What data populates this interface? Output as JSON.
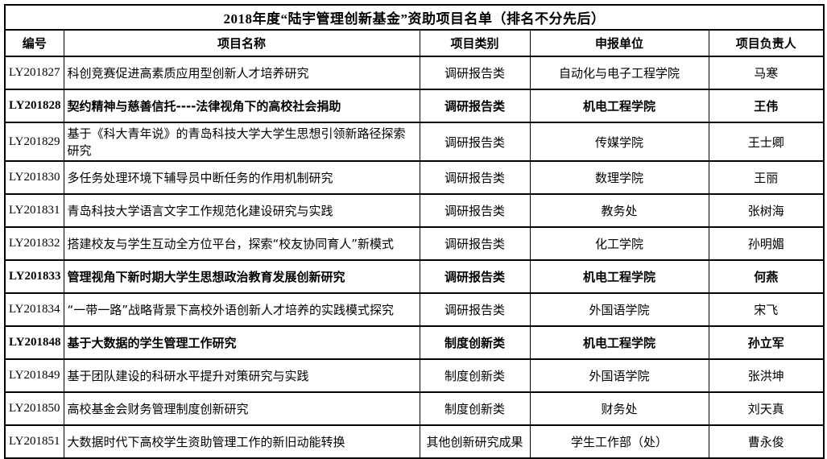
{
  "title": "2018年度“陆宇管理创新基金”资助项目名单（排名不分先后）",
  "columns": [
    "编号",
    "项目名称",
    "项目类别",
    "申报单位",
    "项目负责人"
  ],
  "colors": {
    "border": "#000000",
    "background": "#ffffff",
    "text": "#000000"
  },
  "rows": [
    {
      "id": "LY201827",
      "name": "科创竞赛促进高素质应用型创新人才培养研究",
      "category": "调研报告类",
      "unit": "自动化与电子工程学院",
      "leader": "马寒",
      "bold": false
    },
    {
      "id": "LY201828",
      "name": "契约精神与慈善信托----法律视角下的高校社会捐助",
      "category": "调研报告类",
      "unit": "机电工程学院",
      "leader": "王伟",
      "bold": true
    },
    {
      "id": "LY201829",
      "name": "基于《科大青年说》的青岛科技大学大学生思想引领新路径探索研究",
      "category": "调研报告类",
      "unit": "传媒学院",
      "leader": "王士卿",
      "bold": false
    },
    {
      "id": "LY201830",
      "name": "多任务处理环境下辅导员中断任务的作用机制研究",
      "category": "调研报告类",
      "unit": "数理学院",
      "leader": "王丽",
      "bold": false
    },
    {
      "id": "LY201831",
      "name": "青岛科技大学语言文字工作规范化建设研究与实践",
      "category": "调研报告类",
      "unit": "教务处",
      "leader": "张树海",
      "bold": false
    },
    {
      "id": "LY201832",
      "name": "搭建校友与学生互动全方位平台，探索“校友协同育人”新模式",
      "category": "调研报告类",
      "unit": "化工学院",
      "leader": "孙明媚",
      "bold": false
    },
    {
      "id": "LY201833",
      "name": "管理视角下新时期大学生思想政治教育发展创新研究",
      "category": "调研报告类",
      "unit": "机电工程学院",
      "leader": "何燕",
      "bold": true
    },
    {
      "id": "LY201834",
      "name": "“一带一路”战略背景下高校外语创新人才培养的实践模式探究",
      "category": "调研报告类",
      "unit": "外国语学院",
      "leader": "宋飞",
      "bold": false
    },
    {
      "id": "LY201848",
      "name": "基于大数据的学生管理工作研究",
      "category": "制度创新类",
      "unit": "机电工程学院",
      "leader": "孙立军",
      "bold": true
    },
    {
      "id": "LY201849",
      "name": "基于团队建设的科研水平提升对策研究与实践",
      "category": "制度创新类",
      "unit": "外国语学院",
      "leader": "张洪坤",
      "bold": false
    },
    {
      "id": "LY201850",
      "name": "高校基金会财务管理制度创新研究",
      "category": "制度创新类",
      "unit": "财务处",
      "leader": "刘天真",
      "bold": false
    },
    {
      "id": "LY201851",
      "name": "大数据时代下高校学生资助管理工作的新旧动能转换",
      "category": "其他创新研究成果",
      "unit": "学生工作部（处）",
      "leader": "曹永俊",
      "bold": false
    }
  ]
}
